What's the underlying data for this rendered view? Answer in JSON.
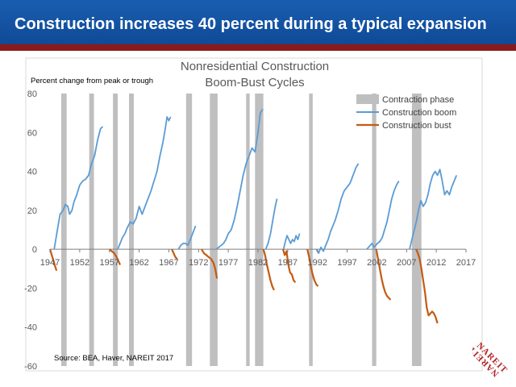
{
  "slide": {
    "title": "Construction increases 40 percent during a typical expansion",
    "accent_color": "#1a5db0",
    "rule_color": "#8b1a1a",
    "logo_text": "NAREIT"
  },
  "chart_data": {
    "type": "line",
    "title_line1": "Nonresidential Construction",
    "title_line2": "Boom-Bust Cycles",
    "ylabel": "Percent change from peak or trough",
    "source": "Source: BEA, Haver, NAREIT 2017",
    "xlim": [
      1947,
      2017
    ],
    "ylim": [
      -60,
      80
    ],
    "x_ticks": [
      "1947",
      "1952",
      "1957",
      "1962",
      "1967",
      "1972",
      "1977",
      "1982",
      "1987",
      "1992",
      "1997",
      "2002",
      "2007",
      "2012",
      "2017"
    ],
    "y_ticks": [
      "80",
      "60",
      "40",
      "20",
      "0",
      "-20",
      "-40",
      "-60"
    ],
    "legend_position": "top-right",
    "legend": [
      "Contraction phase",
      "Construction boom",
      "Construction bust"
    ],
    "colors": {
      "contraction": "#bfbfbf",
      "boom": "#5b9bd5",
      "bust": "#c55a11"
    },
    "contraction_phases": [
      [
        1948.9,
        1949.8
      ],
      [
        1953.6,
        1954.4
      ],
      [
        1957.6,
        1958.4
      ],
      [
        1960.3,
        1961.1
      ],
      [
        1969.9,
        1970.9
      ],
      [
        1973.9,
        1975.2
      ],
      [
        1980.0,
        1980.6
      ],
      [
        1981.5,
        1982.9
      ],
      [
        1990.6,
        1991.2
      ],
      [
        2001.2,
        2001.9
      ],
      [
        2007.9,
        2009.5
      ]
    ],
    "series": [
      {
        "name": "Construction boom",
        "segments": [
          [
            [
              1947.7,
              0
            ],
            [
              1948.2,
              9
            ],
            [
              1948.7,
              18
            ],
            [
              1949.2,
              20
            ],
            [
              1949.6,
              23
            ],
            [
              1950.0,
              22
            ],
            [
              1950.3,
              18
            ],
            [
              1950.7,
              20
            ],
            [
              1951.0,
              24
            ],
            [
              1951.5,
              28
            ],
            [
              1952.0,
              33
            ],
            [
              1952.5,
              35
            ],
            [
              1953.0,
              36
            ],
            [
              1953.5,
              38
            ],
            [
              1954.0,
              44
            ],
            [
              1954.5,
              48
            ],
            [
              1955.0,
              56
            ],
            [
              1955.5,
              62
            ],
            [
              1955.9,
              63
            ]
          ],
          [
            [
              1958.4,
              0
            ],
            [
              1958.8,
              3
            ],
            [
              1959.2,
              6
            ],
            [
              1959.6,
              8
            ],
            [
              1960.0,
              11
            ],
            [
              1960.5,
              14
            ],
            [
              1961.0,
              13
            ],
            [
              1961.5,
              16
            ],
            [
              1962.0,
              22
            ],
            [
              1962.5,
              18
            ],
            [
              1963.0,
              22
            ],
            [
              1963.5,
              26
            ],
            [
              1964.0,
              30
            ],
            [
              1964.5,
              35
            ],
            [
              1965.0,
              40
            ],
            [
              1965.5,
              48
            ],
            [
              1966.0,
              55
            ],
            [
              1966.4,
              62
            ],
            [
              1966.7,
              68
            ],
            [
              1967.0,
              66
            ],
            [
              1967.3,
              68
            ]
          ],
          [
            [
              1968.6,
              0
            ],
            [
              1969.0,
              2
            ],
            [
              1969.4,
              3
            ],
            [
              1969.8,
              3
            ],
            [
              1970.2,
              2
            ],
            [
              1970.6,
              5
            ],
            [
              1971.0,
              8
            ],
            [
              1971.5,
              12
            ]
          ],
          [
            [
              1975.0,
              0
            ],
            [
              1975.4,
              1
            ],
            [
              1975.8,
              2
            ],
            [
              1976.2,
              3
            ],
            [
              1976.6,
              5
            ],
            [
              1977.0,
              8
            ],
            [
              1977.5,
              10
            ],
            [
              1978.0,
              15
            ],
            [
              1978.5,
              22
            ],
            [
              1979.0,
              30
            ],
            [
              1979.5,
              38
            ],
            [
              1980.0,
              44
            ],
            [
              1980.5,
              48
            ],
            [
              1981.0,
              52
            ],
            [
              1981.5,
              50
            ],
            [
              1982.0,
              60
            ],
            [
              1982.4,
              70
            ],
            [
              1982.8,
              72
            ]
          ],
          [
            [
              1983.3,
              0
            ],
            [
              1983.7,
              3
            ],
            [
              1984.1,
              8
            ],
            [
              1984.5,
              15
            ],
            [
              1984.9,
              22
            ],
            [
              1985.2,
              26
            ]
          ],
          [
            [
              1986.3,
              0
            ],
            [
              1986.6,
              4
            ],
            [
              1986.9,
              7
            ],
            [
              1987.2,
              5
            ],
            [
              1987.5,
              3
            ],
            [
              1987.8,
              5
            ],
            [
              1988.1,
              4
            ],
            [
              1988.4,
              7
            ],
            [
              1988.7,
              5
            ],
            [
              1989.0,
              8
            ]
          ],
          [
            [
              1991.8,
              0
            ],
            [
              1992.2,
              -2
            ],
            [
              1992.6,
              1
            ],
            [
              1993.0,
              -1
            ],
            [
              1993.4,
              2
            ],
            [
              1993.8,
              5
            ],
            [
              1994.2,
              9
            ],
            [
              1994.6,
              12
            ],
            [
              1995.0,
              15
            ],
            [
              1995.5,
              20
            ],
            [
              1996.0,
              26
            ],
            [
              1996.5,
              30
            ],
            [
              1997.0,
              32
            ],
            [
              1997.5,
              34
            ],
            [
              1998.0,
              38
            ],
            [
              1998.5,
              42
            ],
            [
              1998.9,
              44
            ]
          ],
          [
            [
              2000.3,
              0
            ],
            [
              2000.6,
              1
            ],
            [
              2000.9,
              2
            ],
            [
              2001.2,
              3
            ],
            [
              2001.5,
              1
            ],
            [
              2001.8,
              2
            ],
            [
              2002.1,
              3
            ],
            [
              2002.5,
              4
            ],
            [
              2002.9,
              6
            ],
            [
              2003.3,
              10
            ],
            [
              2003.7,
              14
            ],
            [
              2004.1,
              20
            ],
            [
              2004.5,
              26
            ],
            [
              2004.9,
              30
            ],
            [
              2005.3,
              33
            ],
            [
              2005.7,
              35
            ]
          ],
          [
            [
              2007.5,
              0
            ],
            [
              2007.9,
              5
            ],
            [
              2008.3,
              10
            ],
            [
              2008.7,
              15
            ],
            [
              2009.0,
              20
            ],
            [
              2009.4,
              25
            ],
            [
              2009.8,
              22
            ],
            [
              2010.2,
              24
            ],
            [
              2010.6,
              28
            ],
            [
              2011.0,
              34
            ],
            [
              2011.4,
              38
            ],
            [
              2011.8,
              40
            ],
            [
              2012.2,
              38
            ],
            [
              2012.6,
              41
            ],
            [
              2013.0,
              35
            ],
            [
              2013.4,
              28
            ],
            [
              2013.8,
              30
            ],
            [
              2014.2,
              28
            ],
            [
              2014.6,
              32
            ],
            [
              2015.0,
              35
            ],
            [
              2015.4,
              38
            ]
          ]
        ]
      },
      {
        "name": "Construction bust",
        "segments": [
          [
            [
              1947.0,
              0
            ],
            [
              1947.3,
              -3
            ],
            [
              1947.6,
              -6
            ],
            [
              1947.9,
              -9
            ],
            [
              1948.1,
              -11
            ]
          ],
          [
            [
              1957.0,
              0
            ],
            [
              1957.4,
              -1
            ],
            [
              1957.8,
              -2
            ],
            [
              1958.2,
              -4
            ],
            [
              1958.5,
              -6
            ],
            [
              1958.8,
              -8
            ]
          ],
          [
            [
              1967.5,
              0
            ],
            [
              1967.8,
              -2
            ],
            [
              1968.1,
              -4
            ],
            [
              1968.4,
              -5
            ]
          ],
          [
            [
              1972.5,
              0
            ],
            [
              1972.9,
              -2
            ],
            [
              1973.3,
              -3
            ],
            [
              1973.7,
              -4
            ],
            [
              1974.1,
              -5
            ],
            [
              1974.5,
              -7
            ],
            [
              1974.8,
              -10
            ],
            [
              1975.1,
              -15
            ]
          ],
          [
            [
              1982.9,
              0
            ],
            [
              1983.2,
              -3
            ],
            [
              1983.5,
              -8
            ],
            [
              1983.8,
              -12
            ],
            [
              1984.1,
              -16
            ],
            [
              1984.4,
              -19
            ],
            [
              1984.7,
              -21
            ]
          ],
          [
            [
              1986.2,
              0
            ],
            [
              1986.5,
              -3
            ],
            [
              1986.8,
              -1
            ],
            [
              1987.1,
              -8
            ],
            [
              1987.4,
              -12
            ],
            [
              1987.7,
              -13
            ],
            [
              1988.0,
              -16
            ],
            [
              1988.3,
              -17
            ]
          ],
          [
            [
              1990.3,
              0
            ],
            [
              1990.6,
              -4
            ],
            [
              1990.9,
              -9
            ],
            [
              1991.2,
              -13
            ],
            [
              1991.5,
              -16
            ],
            [
              1991.8,
              -18
            ],
            [
              1992.1,
              -19
            ]
          ],
          [
            [
              2001.9,
              0
            ],
            [
              2002.2,
              -5
            ],
            [
              2002.5,
              -10
            ],
            [
              2002.8,
              -15
            ],
            [
              2003.1,
              -19
            ],
            [
              2003.4,
              -22
            ],
            [
              2003.7,
              -24
            ],
            [
              2004.0,
              -25
            ],
            [
              2004.3,
              -26
            ]
          ],
          [
            [
              2008.6,
              0
            ],
            [
              2008.9,
              -2
            ],
            [
              2009.2,
              -5
            ],
            [
              2009.5,
              -10
            ],
            [
              2009.8,
              -16
            ],
            [
              2010.1,
              -22
            ],
            [
              2010.4,
              -30
            ],
            [
              2010.7,
              -34
            ],
            [
              2011.0,
              -33
            ],
            [
              2011.3,
              -32
            ],
            [
              2011.6,
              -33
            ],
            [
              2011.9,
              -35
            ],
            [
              2012.2,
              -38
            ]
          ]
        ]
      }
    ]
  }
}
